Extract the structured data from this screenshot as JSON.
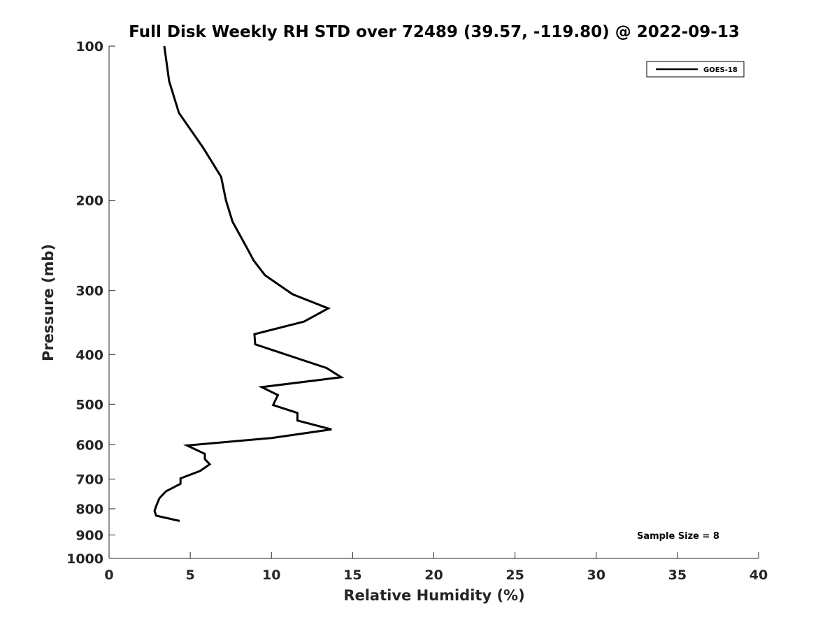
{
  "chart_data": {
    "type": "line",
    "title": "Full Disk Weekly RH STD over 72489 (39.57, -119.80) @ 2022-09-13",
    "xlabel": "Relative Humidity (%)",
    "ylabel": "Pressure (mb)",
    "xlim": [
      0,
      40
    ],
    "ylim": [
      1000,
      100
    ],
    "yscale": "log",
    "y_reversed": true,
    "grid": false,
    "legend_position": "top-right",
    "x_ticks": [
      0,
      5,
      10,
      15,
      20,
      25,
      30,
      35,
      40
    ],
    "y_ticks": [
      100,
      200,
      300,
      400,
      500,
      600,
      700,
      800,
      900,
      1000
    ],
    "annotation": "Sample Size = 8",
    "series": [
      {
        "name": "GOES-18",
        "color": "#000000",
        "points": [
          {
            "rh": 3.4,
            "p": 100
          },
          {
            "rh": 3.7,
            "p": 117
          },
          {
            "rh": 4.3,
            "p": 135
          },
          {
            "rh": 5.8,
            "p": 158
          },
          {
            "rh": 6.9,
            "p": 180
          },
          {
            "rh": 7.2,
            "p": 200
          },
          {
            "rh": 7.6,
            "p": 220
          },
          {
            "rh": 8.5,
            "p": 248
          },
          {
            "rh": 8.9,
            "p": 262
          },
          {
            "rh": 9.6,
            "p": 280
          },
          {
            "rh": 11.3,
            "p": 305
          },
          {
            "rh": 13.5,
            "p": 325
          },
          {
            "rh": 12.0,
            "p": 345
          },
          {
            "rh": 8.95,
            "p": 365
          },
          {
            "rh": 9.0,
            "p": 382
          },
          {
            "rh": 13.4,
            "p": 425
          },
          {
            "rh": 14.3,
            "p": 443
          },
          {
            "rh": 9.4,
            "p": 463
          },
          {
            "rh": 10.4,
            "p": 480
          },
          {
            "rh": 10.1,
            "p": 502
          },
          {
            "rh": 11.6,
            "p": 520
          },
          {
            "rh": 11.6,
            "p": 538
          },
          {
            "rh": 13.7,
            "p": 560
          },
          {
            "rh": 10.0,
            "p": 582
          },
          {
            "rh": 4.8,
            "p": 602
          },
          {
            "rh": 5.9,
            "p": 625
          },
          {
            "rh": 5.9,
            "p": 640
          },
          {
            "rh": 6.2,
            "p": 655
          },
          {
            "rh": 5.6,
            "p": 675
          },
          {
            "rh": 4.4,
            "p": 698
          },
          {
            "rh": 4.4,
            "p": 715
          },
          {
            "rh": 3.5,
            "p": 740
          },
          {
            "rh": 3.1,
            "p": 763
          },
          {
            "rh": 2.9,
            "p": 790
          },
          {
            "rh": 2.8,
            "p": 808
          },
          {
            "rh": 2.9,
            "p": 825
          },
          {
            "rh": 4.35,
            "p": 845
          }
        ]
      }
    ]
  }
}
